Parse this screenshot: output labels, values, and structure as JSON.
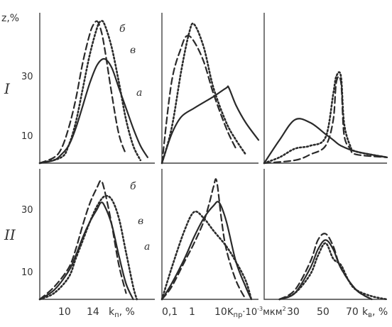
{
  "figure": {
    "y_axis_label": "z,%",
    "rows": [
      "I",
      "II"
    ]
  },
  "chart_data": [
    {
      "type": "line",
      "panel": "I-1",
      "xlabel": "k_п, %",
      "tick_labels": [],
      "y_tick_labels": [
        "10",
        "30"
      ],
      "ylim": [
        0,
        50
      ],
      "xlim": [
        6,
        22
      ],
      "series": [
        {
          "name": "a",
          "style": "solid",
          "x": [
            6,
            8,
            9,
            10,
            11,
            12,
            13,
            14,
            15,
            16,
            17,
            18,
            19,
            20,
            21
          ],
          "y": [
            0,
            1,
            3,
            6,
            12,
            20,
            28,
            34,
            36,
            33,
            26,
            19,
            12,
            6,
            2
          ]
        },
        {
          "name": "б",
          "style": "dashed",
          "x": [
            6,
            8,
            9,
            10,
            11,
            12,
            13,
            13.5,
            14,
            14.5,
            15,
            16,
            17,
            18
          ],
          "y": [
            0,
            2,
            5,
            12,
            22,
            35,
            45,
            48,
            49,
            46,
            40,
            24,
            10,
            3
          ]
        },
        {
          "name": "в",
          "style": "dotted",
          "x": [
            6,
            9,
            10,
            11,
            12,
            13,
            14,
            14.5,
            15,
            16,
            17,
            18,
            19,
            20
          ],
          "y": [
            0,
            2,
            6,
            14,
            26,
            38,
            47,
            49,
            48,
            40,
            28,
            15,
            6,
            1
          ]
        }
      ],
      "annotations": [
        "б",
        "в",
        "a"
      ]
    },
    {
      "type": "line",
      "panel": "I-2",
      "xlabel": "",
      "tick_labels": [],
      "xscale": "log",
      "xlim": [
        0.1,
        100
      ],
      "ylim": [
        0,
        50
      ],
      "series": [
        {
          "name": "a",
          "style": "solid",
          "x": [
            0.1,
            0.2,
            0.4,
            1,
            2,
            4,
            10,
            12,
            20,
            40,
            100
          ],
          "y": [
            0,
            10,
            16,
            19,
            21,
            23,
            26,
            26,
            20,
            14,
            8
          ]
        },
        {
          "name": "б",
          "style": "dashed",
          "x": [
            0.1,
            0.2,
            0.4,
            0.6,
            1,
            2,
            4,
            10,
            20
          ],
          "y": [
            0,
            28,
            40,
            44,
            42,
            35,
            24,
            12,
            5
          ]
        },
        {
          "name": "в",
          "style": "dotted",
          "x": [
            0.1,
            0.2,
            0.4,
            0.7,
            1,
            2,
            4,
            10,
            20,
            40
          ],
          "y": [
            0,
            12,
            32,
            45,
            48,
            40,
            26,
            14,
            8,
            3
          ]
        }
      ]
    },
    {
      "type": "line",
      "panel": "I-3",
      "xlabel": "",
      "tick_labels": [],
      "xlim": [
        10,
        90
      ],
      "ylim": [
        0,
        50
      ],
      "series": [
        {
          "name": "a",
          "style": "solid",
          "x": [
            10,
            20,
            30,
            40,
            50,
            55,
            60,
            70,
            90
          ],
          "y": [
            0,
            8,
            15,
            14,
            10,
            8,
            6,
            4,
            2
          ]
        },
        {
          "name": "б",
          "style": "dashed",
          "x": [
            10,
            30,
            40,
            50,
            55,
            57,
            60,
            62,
            66,
            70,
            90
          ],
          "y": [
            0,
            1,
            3,
            6,
            15,
            28,
            28,
            10,
            5,
            3,
            2
          ]
        },
        {
          "name": "в",
          "style": "dotted",
          "x": [
            10,
            20,
            30,
            40,
            50,
            55,
            57,
            60,
            62,
            66,
            70,
            90
          ],
          "y": [
            0,
            2,
            5,
            6,
            9,
            24,
            30,
            30,
            14,
            6,
            4,
            2
          ]
        }
      ]
    },
    {
      "type": "line",
      "panel": "II-1",
      "xlabel": "k_п, %",
      "tick_labels": [
        "10",
        "14"
      ],
      "y_tick_labels": [
        "10",
        "30"
      ],
      "xlim": [
        6,
        22
      ],
      "ylim": [
        0,
        40
      ],
      "series": [
        {
          "name": "a",
          "style": "solid",
          "x": [
            6,
            8,
            10,
            11,
            12,
            13,
            14,
            14.5,
            15,
            16,
            17,
            18,
            19
          ],
          "y": [
            0,
            3,
            9,
            14,
            20,
            25,
            29,
            31,
            30,
            24,
            14,
            5,
            0
          ]
        },
        {
          "name": "б",
          "style": "dashed",
          "x": [
            6,
            8,
            10,
            11,
            12,
            13,
            14,
            14.5,
            15,
            16,
            17,
            18
          ],
          "y": [
            0,
            4,
            10,
            16,
            24,
            31,
            36,
            38,
            35,
            24,
            11,
            2
          ]
        },
        {
          "name": "в",
          "style": "dotted",
          "x": [
            6,
            8,
            10,
            11,
            12,
            13,
            14,
            15,
            16,
            17,
            18,
            19,
            19.5
          ],
          "y": [
            0,
            2,
            7,
            13,
            19,
            25,
            30,
            33,
            32,
            26,
            15,
            4,
            0
          ]
        }
      ],
      "annotations": [
        "б",
        "в",
        "a"
      ]
    },
    {
      "type": "line",
      "panel": "II-2",
      "xlabel": "k_пр,·10⁻³мкм²",
      "tick_labels": [
        "0,1",
        "1",
        "10"
      ],
      "xscale": "log",
      "xlim": [
        0.1,
        100
      ],
      "ylim": [
        0,
        40
      ],
      "series": [
        {
          "name": "a",
          "style": "solid",
          "x": [
            0.1,
            0.2,
            0.5,
            1,
            2,
            4,
            6,
            10,
            20,
            40,
            60
          ],
          "y": [
            0,
            5,
            13,
            20,
            26,
            30,
            31,
            25,
            12,
            4,
            0
          ]
        },
        {
          "name": "б",
          "style": "dashed",
          "x": [
            0.1,
            0.2,
            0.5,
            1,
            2,
            3,
            4,
            5,
            7,
            10,
            20,
            40
          ],
          "y": [
            0,
            4,
            12,
            18,
            25,
            31,
            36,
            38,
            26,
            16,
            6,
            0
          ]
        },
        {
          "name": "в",
          "style": "dotted",
          "x": [
            0.1,
            0.2,
            0.5,
            1,
            2,
            4,
            10,
            20,
            40,
            60
          ],
          "y": [
            0,
            10,
            22,
            28,
            26,
            22,
            17,
            12,
            6,
            0
          ]
        }
      ]
    },
    {
      "type": "line",
      "panel": "II-3",
      "xlabel": "k_в, %",
      "tick_labels": [
        "30",
        "50",
        "70"
      ],
      "xlim": [
        10,
        90
      ],
      "ylim": [
        0,
        40
      ],
      "series": [
        {
          "name": "a",
          "style": "solid",
          "x": [
            20,
            30,
            40,
            45,
            50,
            55,
            60,
            70,
            80
          ],
          "y": [
            0,
            2,
            10,
            16,
            19,
            16,
            10,
            3,
            0
          ]
        },
        {
          "name": "б",
          "style": "dashed",
          "x": [
            20,
            30,
            40,
            45,
            50,
            55,
            60,
            70,
            80
          ],
          "y": [
            0,
            3,
            12,
            19,
            21,
            17,
            10,
            3,
            0
          ]
        },
        {
          "name": "в",
          "style": "dotted",
          "x": [
            20,
            30,
            40,
            45,
            50,
            55,
            60,
            65,
            70,
            80,
            90
          ],
          "y": [
            0,
            2,
            8,
            14,
            18,
            13,
            11,
            6,
            3,
            1,
            0
          ]
        }
      ]
    }
  ],
  "ui": {
    "bottom_labels": {
      "x10": "10",
      "x14": "14",
      "kp": "k",
      "kp_sub": "п",
      "kp_unit": ", %",
      "x01": "0,1",
      "x1": "1",
      "x10b": "10",
      "kpr": "K",
      "kpr_sub": "пр",
      "kpr_unit": "·10",
      "kpr_exp": "-3",
      "kpr_unit2": "мкм",
      "kpr_unit2_exp": "2",
      "x30": "30",
      "x50": "50",
      "x70": "70",
      "kv": "k",
      "kv_sub": "в",
      "kv_unit": ", %"
    },
    "ytick": {
      "r1_10": "10",
      "r1_30": "30",
      "r2_10": "10",
      "r2_30": "30"
    },
    "curve_letters": {
      "b": "б",
      "v": "в",
      "a": "a"
    }
  }
}
